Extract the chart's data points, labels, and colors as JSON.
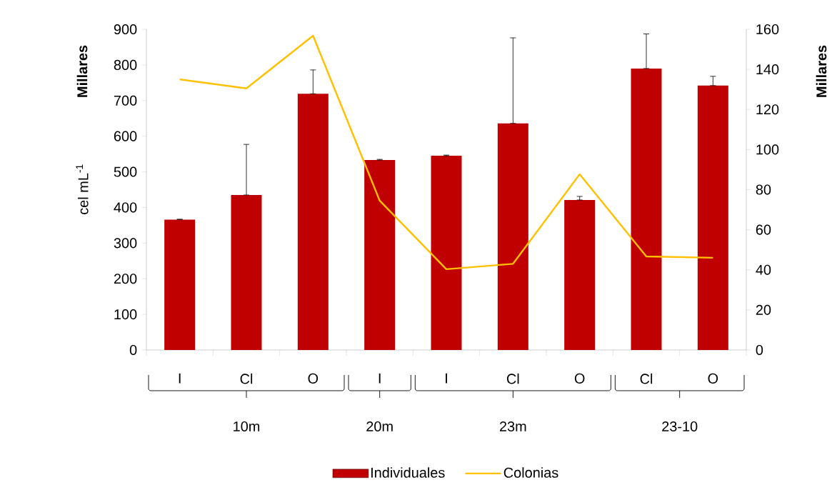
{
  "chart_data": {
    "type": "bar",
    "categories": [
      "I",
      "Cl",
      "O",
      "I",
      "I",
      "Cl",
      "O",
      "Cl",
      "O"
    ],
    "series": [
      {
        "name": "Individuales",
        "color": "#c00000",
        "values": [
          366,
          435,
          719,
          533,
          545,
          636,
          421,
          790,
          742
        ],
        "errors": [
          [
            366,
            367
          ],
          [
            435,
            577
          ],
          [
            719,
            786
          ],
          [
            533,
            535
          ],
          [
            545,
            547
          ],
          [
            636,
            876
          ],
          [
            421,
            431
          ],
          [
            790,
            887
          ],
          [
            742,
            768
          ]
        ]
      },
      {
        "name": "Colonias",
        "type": "line",
        "axis": "y2",
        "color": "#ffc000",
        "values": [
          135,
          130.5,
          156.8,
          74.5,
          40.3,
          43,
          87.7,
          46.7,
          46
        ]
      }
    ],
    "ylabel": "cel mL$^{-1}$",
    "y2label": "Millares",
    "annotations": [
      "**Millares**",
      "10m",
      "20m",
      "23m",
      "23-10"
    ],
    "ylim": [
      0,
      900
    ],
    "yticks": [
      0,
      100,
      200,
      300,
      400,
      500,
      600,
      700,
      800,
      900
    ],
    "y2lim": [
      0,
      160
    ],
    "y2ticks": [
      0,
      20,
      40,
      60,
      80,
      100,
      120,
      140,
      160
    ],
    "legend": "bottom",
    "grid": false,
    "marker": "none",
    "line_style": "solid"
  }
}
